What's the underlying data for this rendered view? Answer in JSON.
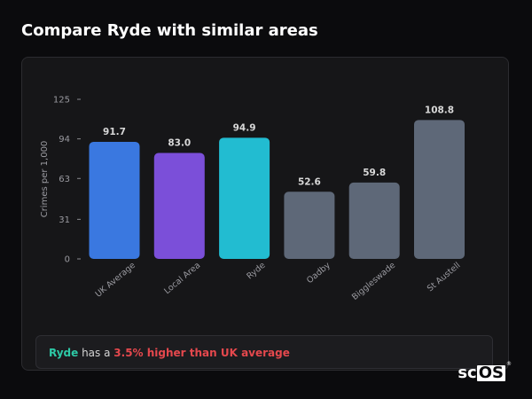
{
  "page": {
    "title": "Compare Ryde with similar areas"
  },
  "chart_data": {
    "type": "bar",
    "ylabel": "Crimes per 1,000",
    "xlabel": "",
    "ylim": [
      0,
      125
    ],
    "yticks": [
      0,
      31,
      63,
      94,
      125
    ],
    "grid": false,
    "categories": [
      "UK Average",
      "Local Area",
      "Ryde",
      "Oadby",
      "Biggleswade",
      "St Austell"
    ],
    "values": [
      91.7,
      83.0,
      94.9,
      52.6,
      59.8,
      108.8
    ],
    "value_labels": [
      "91.7",
      "83.0",
      "94.9",
      "52.6",
      "59.8",
      "108.8"
    ],
    "colors": [
      "#3a78e0",
      "#7b4fd9",
      "#22bcd1",
      "#5e6878",
      "#5e6878",
      "#5e6878"
    ]
  },
  "summary": {
    "area": "Ryde",
    "middle": " has a ",
    "difference": "3.5% higher than UK average"
  },
  "logo": {
    "text_sc": "sc",
    "text_os": "OS",
    "reg": "®"
  }
}
